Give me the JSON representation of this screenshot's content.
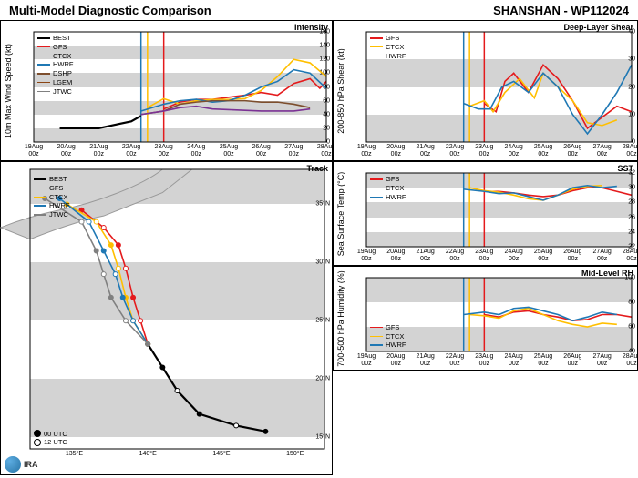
{
  "header": {
    "title": "Multi-Model Diagnostic Comparison",
    "storm": "SHANSHAN - WP112024"
  },
  "logo": "IRA",
  "colors": {
    "BEST": "#000000",
    "GFS": "#e41a1c",
    "CTCX": "#ffbf00",
    "HWRF": "#1f78b4",
    "DSHP": "#7d4e2d",
    "LGEM": "#8b4513",
    "JTWC": "#808080",
    "purple": "#7b3294"
  },
  "time_axis": {
    "labels": [
      "19Aug\n00z",
      "20Aug\n00z",
      "21Aug\n00z",
      "22Aug\n00z",
      "23Aug\n00z",
      "24Aug\n00z",
      "25Aug\n00z",
      "26Aug\n00z",
      "27Aug\n00z",
      "28Aug\n00z"
    ],
    "min": 0,
    "max": 9
  },
  "intensity": {
    "title": "Intensity",
    "ylabel": "10m Max Wind Speed (kt)",
    "ylim": [
      0,
      160
    ],
    "ytick_step": 20,
    "legend": [
      "BEST",
      "GFS",
      "CTCX",
      "HWRF",
      "DSHP",
      "LGEM",
      "JTWC"
    ],
    "legend_colors": [
      "#000000",
      "#e41a1c",
      "#ffbf00",
      "#1f78b4",
      "#7d4e2d",
      "#8b4513",
      "#808080"
    ],
    "vlines": [
      {
        "x": 3.3,
        "color": "#1f78b4"
      },
      {
        "x": 3.5,
        "color": "#ffbf00"
      },
      {
        "x": 4.0,
        "color": "#e41a1c"
      }
    ],
    "series": {
      "BEST": [
        [
          0.8,
          20
        ],
        [
          1.5,
          20
        ],
        [
          2.0,
          20
        ],
        [
          2.5,
          25
        ],
        [
          3.0,
          30
        ],
        [
          3.3,
          38
        ]
      ],
      "GFS": [
        [
          4.0,
          48
        ],
        [
          4.5,
          58
        ],
        [
          5.0,
          62
        ],
        [
          5.5,
          62
        ],
        [
          6.0,
          65
        ],
        [
          6.5,
          68
        ],
        [
          7.0,
          72
        ],
        [
          7.5,
          68
        ],
        [
          8.0,
          85
        ],
        [
          8.5,
          92
        ],
        [
          8.8,
          78
        ],
        [
          9.0,
          88
        ]
      ],
      "CTCX": [
        [
          3.5,
          50
        ],
        [
          4.0,
          63
        ],
        [
          4.5,
          55
        ],
        [
          5.0,
          60
        ],
        [
          5.5,
          62
        ],
        [
          6.0,
          62
        ],
        [
          6.5,
          63
        ],
        [
          7.0,
          75
        ],
        [
          7.5,
          95
        ],
        [
          8.0,
          120
        ],
        [
          8.5,
          115
        ],
        [
          9.0,
          95
        ]
      ],
      "HWRF": [
        [
          3.3,
          45
        ],
        [
          4.0,
          55
        ],
        [
          4.5,
          60
        ],
        [
          5.0,
          62
        ],
        [
          5.5,
          58
        ],
        [
          6.0,
          60
        ],
        [
          6.5,
          68
        ],
        [
          7.0,
          80
        ],
        [
          7.5,
          88
        ],
        [
          8.0,
          105
        ],
        [
          8.5,
          100
        ],
        [
          9.0,
          78
        ]
      ],
      "DSHP": [
        [
          3.3,
          40
        ],
        [
          4.0,
          45
        ],
        [
          4.5,
          55
        ],
        [
          5.0,
          58
        ],
        [
          5.5,
          60
        ],
        [
          6.0,
          60
        ],
        [
          6.5,
          60
        ],
        [
          7.0,
          58
        ],
        [
          7.5,
          58
        ],
        [
          8.0,
          55
        ],
        [
          8.5,
          50
        ]
      ],
      "purple": [
        [
          3.3,
          40
        ],
        [
          4.0,
          45
        ],
        [
          4.5,
          50
        ],
        [
          5.0,
          52
        ],
        [
          5.5,
          48
        ],
        [
          6.0,
          47
        ],
        [
          6.5,
          46
        ],
        [
          7.0,
          45
        ],
        [
          7.5,
          45
        ],
        [
          8.0,
          45
        ],
        [
          8.5,
          48
        ]
      ]
    }
  },
  "shear": {
    "title": "Deep-Layer Shear",
    "ylabel": "200-850 hPa Shear (kt)",
    "ylim": [
      0,
      40
    ],
    "ytick_step": 10,
    "legend": [
      "GFS",
      "CTCX",
      "HWRF"
    ],
    "legend_colors": [
      "#e41a1c",
      "#ffbf00",
      "#1f78b4"
    ],
    "vlines": [
      {
        "x": 3.3,
        "color": "#1f78b4"
      },
      {
        "x": 3.5,
        "color": "#ffbf00"
      },
      {
        "x": 4.0,
        "color": "#e41a1c"
      }
    ],
    "series": {
      "GFS": [
        [
          4.0,
          14
        ],
        [
          4.4,
          11
        ],
        [
          4.7,
          22
        ],
        [
          5.0,
          25
        ],
        [
          5.5,
          18
        ],
        [
          6.0,
          28
        ],
        [
          6.5,
          23
        ],
        [
          7.0,
          15
        ],
        [
          7.5,
          5
        ],
        [
          8.0,
          9
        ],
        [
          8.5,
          13
        ],
        [
          9.0,
          11
        ]
      ],
      "CTCX": [
        [
          3.5,
          13
        ],
        [
          4.0,
          15
        ],
        [
          4.3,
          11
        ],
        [
          4.7,
          18
        ],
        [
          5.2,
          23
        ],
        [
          5.7,
          16
        ],
        [
          6.0,
          25
        ],
        [
          6.5,
          20
        ],
        [
          7.0,
          15
        ],
        [
          7.5,
          7
        ],
        [
          8.0,
          6
        ],
        [
          8.5,
          8
        ]
      ],
      "HWRF": [
        [
          3.3,
          14
        ],
        [
          3.8,
          12
        ],
        [
          4.2,
          12
        ],
        [
          4.6,
          20
        ],
        [
          5.0,
          22
        ],
        [
          5.5,
          18
        ],
        [
          6.0,
          25
        ],
        [
          6.5,
          20
        ],
        [
          7.0,
          10
        ],
        [
          7.5,
          3
        ],
        [
          8.0,
          10
        ],
        [
          8.5,
          18
        ],
        [
          9.0,
          28
        ]
      ]
    }
  },
  "sst": {
    "title": "SST",
    "ylabel": "Sea Surface Temp (°C)",
    "ylim": [
      22,
      32
    ],
    "ytick_step": 2,
    "legend": [
      "GFS",
      "CTCX",
      "HWRF"
    ],
    "legend_colors": [
      "#e41a1c",
      "#ffbf00",
      "#1f78b4"
    ],
    "vlines": [
      {
        "x": 3.3,
        "color": "#1f78b4"
      },
      {
        "x": 3.5,
        "color": "#ffbf00"
      },
      {
        "x": 4.0,
        "color": "#e41a1c"
      }
    ],
    "series": {
      "GFS": [
        [
          4.0,
          29.5
        ],
        [
          4.5,
          29.5
        ],
        [
          5.0,
          29.3
        ],
        [
          5.5,
          29.0
        ],
        [
          6.0,
          28.8
        ],
        [
          6.5,
          29.0
        ],
        [
          7.0,
          29.6
        ],
        [
          7.5,
          30.0
        ],
        [
          8.0,
          30.0
        ],
        [
          8.5,
          29.5
        ],
        [
          9.0,
          29.0
        ]
      ],
      "CTCX": [
        [
          3.5,
          30.0
        ],
        [
          4.0,
          29.6
        ],
        [
          4.5,
          29.4
        ],
        [
          5.0,
          29.0
        ],
        [
          5.5,
          28.5
        ],
        [
          6.0,
          28.3
        ],
        [
          6.5,
          29.0
        ],
        [
          7.0,
          29.8
        ],
        [
          7.5,
          30.2
        ],
        [
          8.0,
          30.3
        ]
      ],
      "HWRF": [
        [
          3.3,
          29.8
        ],
        [
          4.0,
          29.5
        ],
        [
          4.5,
          29.2
        ],
        [
          5.0,
          29.3
        ],
        [
          5.5,
          28.8
        ],
        [
          6.0,
          28.3
        ],
        [
          6.5,
          29.0
        ],
        [
          7.0,
          30.0
        ],
        [
          7.5,
          30.3
        ],
        [
          8.0,
          30.0
        ],
        [
          8.5,
          30.2
        ]
      ]
    }
  },
  "rh": {
    "title": "Mid-Level RH",
    "ylabel": "700-500 hPa Humidity (%)",
    "ylim": [
      40,
      100
    ],
    "ytick_step": 20,
    "legend": [
      "GFS",
      "CTCX",
      "HWRF"
    ],
    "legend_colors": [
      "#e41a1c",
      "#ffbf00",
      "#1f78b4"
    ],
    "vlines": [
      {
        "x": 3.3,
        "color": "#1f78b4"
      },
      {
        "x": 3.5,
        "color": "#ffbf00"
      },
      {
        "x": 4.0,
        "color": "#e41a1c"
      }
    ],
    "series": {
      "GFS": [
        [
          4.0,
          70
        ],
        [
          4.5,
          68
        ],
        [
          5.0,
          72
        ],
        [
          5.5,
          73
        ],
        [
          6.0,
          70
        ],
        [
          6.5,
          68
        ],
        [
          7.0,
          65
        ],
        [
          7.5,
          66
        ],
        [
          8.0,
          70
        ],
        [
          8.5,
          70
        ],
        [
          9.0,
          68
        ]
      ],
      "CTCX": [
        [
          3.5,
          70
        ],
        [
          4.0,
          69
        ],
        [
          4.5,
          67
        ],
        [
          5.0,
          73
        ],
        [
          5.5,
          75
        ],
        [
          6.0,
          70
        ],
        [
          6.5,
          65
        ],
        [
          7.0,
          62
        ],
        [
          7.5,
          60
        ],
        [
          8.0,
          63
        ],
        [
          8.5,
          62
        ]
      ],
      "HWRF": [
        [
          3.3,
          70
        ],
        [
          4.0,
          72
        ],
        [
          4.5,
          70
        ],
        [
          5.0,
          75
        ],
        [
          5.5,
          76
        ],
        [
          6.0,
          73
        ],
        [
          6.5,
          70
        ],
        [
          7.0,
          65
        ],
        [
          7.5,
          68
        ],
        [
          8.0,
          72
        ],
        [
          8.5,
          70
        ]
      ]
    }
  },
  "track": {
    "title": "Track",
    "ylabel": "",
    "xlim": [
      132,
      152
    ],
    "ylim": [
      14,
      38
    ],
    "xticks": [
      135,
      140,
      145,
      150
    ],
    "yticks": [
      15,
      20,
      25,
      30,
      35
    ],
    "legend": [
      "BEST",
      "GFS",
      "CTCX",
      "HWRF",
      "JTWC"
    ],
    "legend_colors": [
      "#000000",
      "#e41a1c",
      "#ffbf00",
      "#1f78b4",
      "#808080"
    ],
    "markers_note": {
      "filled": "00 UTC",
      "open": "12 UTC"
    },
    "series": {
      "BEST": [
        [
          148,
          15.5
        ],
        [
          146,
          16
        ],
        [
          143.5,
          17
        ],
        [
          142,
          19
        ],
        [
          141,
          21
        ],
        [
          140,
          23
        ]
      ],
      "GFS": [
        [
          140,
          23
        ],
        [
          139.5,
          25
        ],
        [
          139,
          27
        ],
        [
          138.5,
          29.5
        ],
        [
          138,
          31.5
        ],
        [
          137,
          33
        ],
        [
          135.5,
          34.5
        ]
      ],
      "CTCX": [
        [
          140,
          23
        ],
        [
          139,
          25
        ],
        [
          138.5,
          27
        ],
        [
          138,
          29.5
        ],
        [
          137.5,
          31.5
        ],
        [
          136.5,
          33.5
        ],
        [
          134.5,
          35
        ]
      ],
      "HWRF": [
        [
          140,
          23
        ],
        [
          139,
          25
        ],
        [
          138.3,
          27
        ],
        [
          137.8,
          29
        ],
        [
          137,
          31
        ],
        [
          136,
          33.5
        ],
        [
          134,
          35.5
        ]
      ],
      "JTWC": [
        [
          140,
          23
        ],
        [
          138.5,
          25
        ],
        [
          137.5,
          27
        ],
        [
          137,
          29
        ],
        [
          136.5,
          31
        ],
        [
          135.5,
          33.5
        ],
        [
          133,
          35.5
        ]
      ]
    }
  }
}
